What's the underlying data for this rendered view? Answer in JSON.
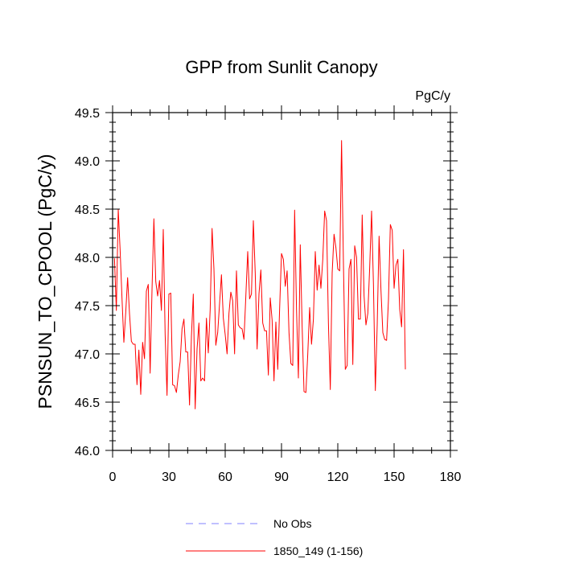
{
  "chart_data": {
    "type": "line",
    "title": "GPP from Sunlit Canopy",
    "units_label": "PgC/y",
    "ylabel": "PSNSUN_TO_CPOOL  (PgC/y)",
    "xlabel": "",
    "xlim": [
      0,
      180
    ],
    "ylim": [
      46.0,
      49.5
    ],
    "xticks": [
      0,
      30,
      60,
      90,
      120,
      150,
      180
    ],
    "yticks": [
      46.0,
      46.5,
      47.0,
      47.5,
      48.0,
      48.5,
      49.0,
      49.5
    ],
    "xtick_labels": [
      "0",
      "30",
      "60",
      "90",
      "120",
      "150",
      "180"
    ],
    "ytick_labels": [
      "46.0",
      "46.5",
      "47.0",
      "47.5",
      "48.0",
      "48.5",
      "49.0",
      "49.5"
    ],
    "grid": false,
    "legend_position": "bottom-center",
    "series": [
      {
        "name": "No Obs",
        "color": "#8080ff",
        "style": "dashed",
        "values": []
      },
      {
        "name": "1850_149 (1-156)",
        "color": "#ff0000",
        "style": "solid",
        "x_start": 1,
        "values": [
          47.99,
          47.45,
          48.5,
          48.08,
          47.58,
          47.12,
          47.43,
          47.79,
          47.42,
          47.13,
          47.1,
          47.1,
          46.68,
          47.04,
          46.58,
          47.12,
          46.95,
          47.65,
          47.72,
          46.8,
          47.66,
          48.4,
          47.75,
          47.6,
          47.76,
          47.45,
          48.29,
          47.2,
          46.57,
          47.62,
          47.63,
          46.68,
          46.67,
          46.6,
          46.78,
          46.92,
          47.26,
          47.36,
          47.02,
          47.02,
          46.47,
          47.18,
          47.62,
          46.43,
          47.05,
          47.32,
          46.72,
          46.75,
          46.72,
          47.37,
          47.01,
          47.46,
          48.3,
          47.88,
          47.09,
          47.22,
          47.52,
          47.82,
          47.37,
          47.2,
          47.0,
          47.42,
          47.64,
          47.55,
          47.0,
          47.86,
          47.3,
          47.27,
          47.26,
          47.15,
          47.6,
          48.06,
          47.57,
          47.62,
          48.38,
          47.84,
          47.05,
          47.62,
          47.87,
          47.32,
          47.24,
          47.24,
          46.78,
          47.58,
          47.35,
          46.72,
          47.33,
          46.84,
          47.47,
          48.04,
          47.98,
          47.7,
          47.86,
          47.22,
          46.9,
          46.88,
          48.49,
          47.46,
          46.75,
          48.13,
          47.28,
          46.61,
          46.6,
          47.0,
          47.48,
          47.1,
          47.36,
          48.06,
          47.66,
          47.92,
          47.68,
          47.98,
          48.48,
          48.38,
          47.32,
          46.63,
          47.84,
          48.24,
          48.1,
          47.88,
          47.86,
          49.21,
          47.94,
          46.84,
          46.88,
          47.88,
          47.98,
          46.89,
          48.12,
          48.0,
          47.36,
          47.36,
          48.44,
          47.6,
          47.3,
          47.42,
          47.9,
          48.48,
          47.72,
          46.62,
          47.3,
          48.22,
          47.66,
          47.22,
          47.15,
          47.14,
          47.56,
          48.34,
          48.28,
          47.68,
          47.92,
          47.98,
          47.46,
          47.28,
          48.08,
          46.84
        ]
      }
    ]
  }
}
